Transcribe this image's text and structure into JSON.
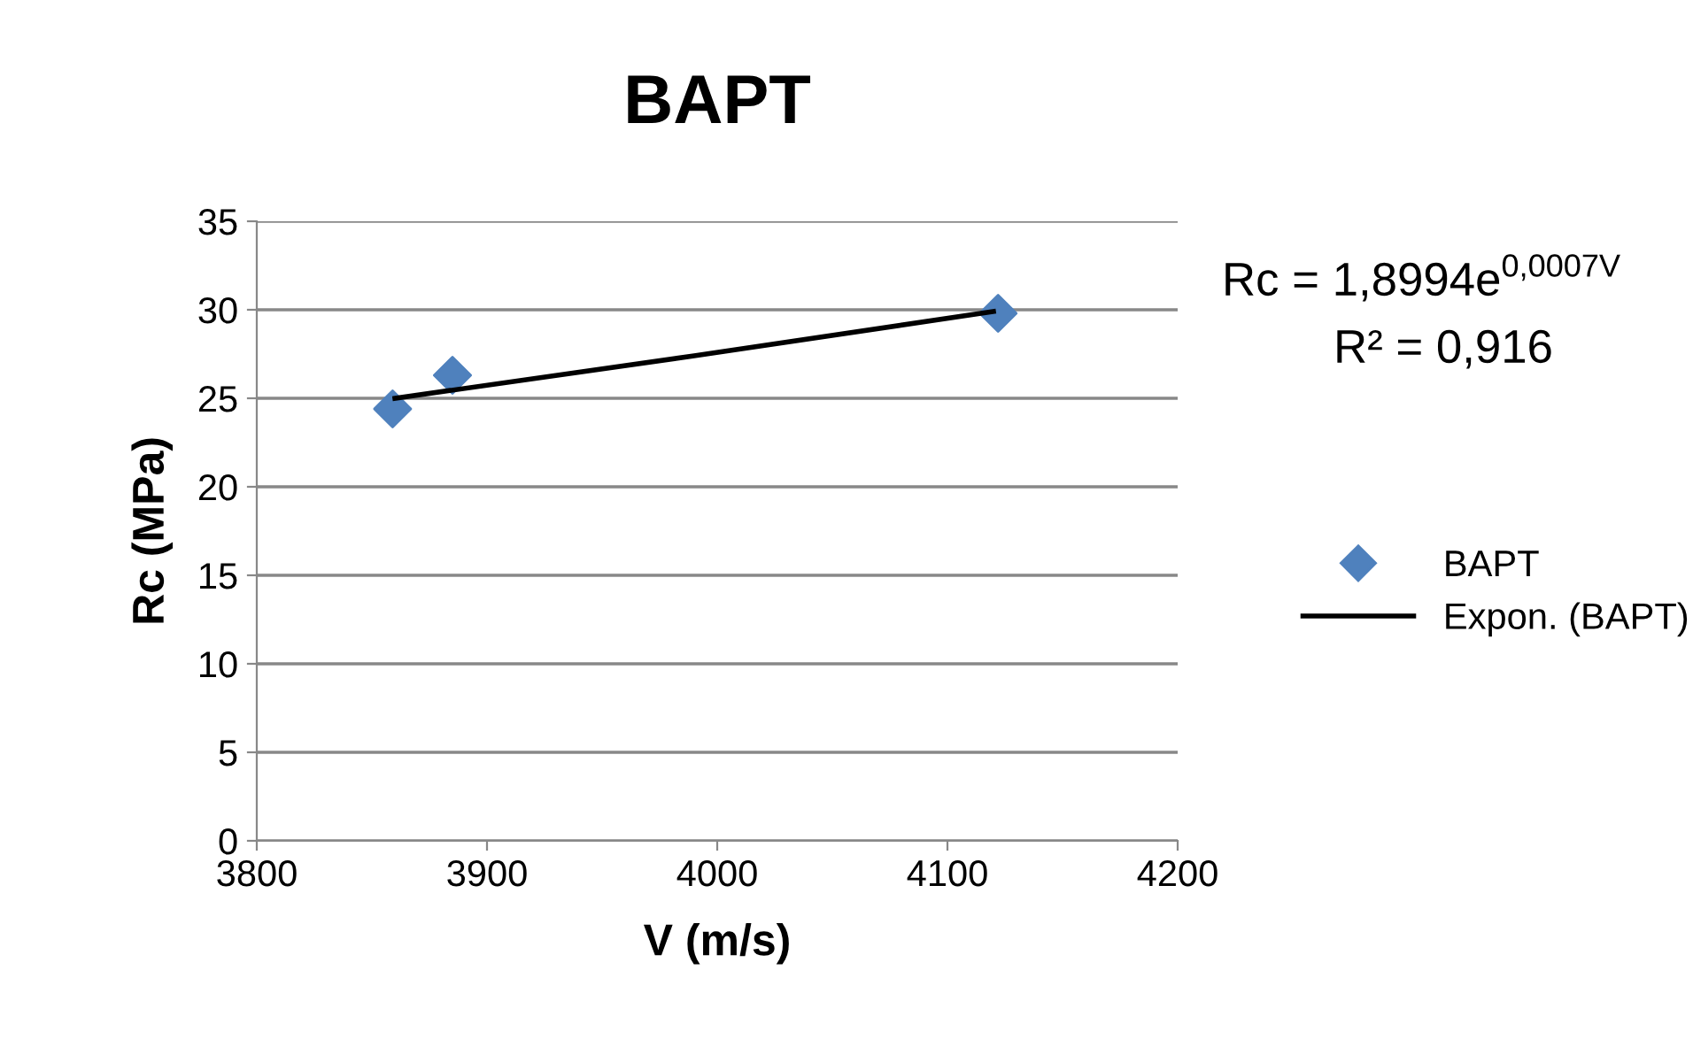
{
  "chart_data": {
    "type": "scatter",
    "title": "BAPT",
    "xlabel": "V (m/s)",
    "ylabel": "Rc (MPa)",
    "series": [
      {
        "name": "BAPT",
        "color": "#4f81bd",
        "marker": "diamond",
        "x": [
          3859,
          3885,
          4122
        ],
        "values": [
          24.4,
          26.3,
          29.8
        ]
      },
      {
        "name": "Expon. (BAPT)",
        "type": "line",
        "color": "#000000",
        "marker": "none",
        "x": [
          3860,
          3990,
          4120
        ],
        "values": [
          25.0,
          27.4,
          29.9
        ]
      }
    ],
    "annotations": [
      "Rc = 1,8994e$^{0,0007V}$",
      "R² = 0,916"
    ],
    "xlim": [
      3800,
      4200
    ],
    "xticks": [
      3800,
      3900,
      4000,
      4100,
      4200
    ],
    "ylim": [
      0,
      35
    ],
    "yticks": [
      0,
      5,
      10,
      15,
      20,
      25,
      30,
      35
    ],
    "grid": "y",
    "legend": "right"
  }
}
